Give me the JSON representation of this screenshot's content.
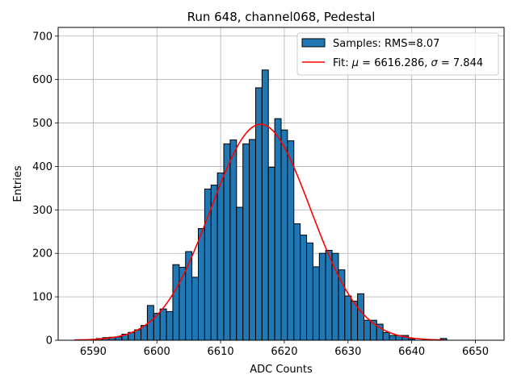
{
  "chart_data": {
    "type": "bar",
    "title": "Run 648, channel068, Pedestal",
    "xlabel": "ADC Counts",
    "ylabel": "Entries",
    "xlim": [
      6584.5,
      6654.5
    ],
    "ylim": [
      0,
      720
    ],
    "xticks": [
      6590,
      6600,
      6610,
      6620,
      6630,
      6640,
      6650
    ],
    "yticks": [
      0,
      100,
      200,
      300,
      400,
      500,
      600,
      700
    ],
    "grid": true,
    "legend_position": "top-right",
    "bar_color": "#1f77b4",
    "fit_color": "#ff0000",
    "series": [
      {
        "name": "Samples: RMS=8.07",
        "kind": "histogram",
        "x": [
          6588,
          6589,
          6590,
          6591,
          6592,
          6593,
          6594,
          6595,
          6596,
          6597,
          6598,
          6599,
          6600,
          6601,
          6602,
          6603,
          6604,
          6605,
          6606,
          6607,
          6608,
          6609,
          6610,
          6611,
          6612,
          6613,
          6614,
          6615,
          6616,
          6617,
          6618,
          6619,
          6620,
          6621,
          6622,
          6623,
          6624,
          6625,
          6626,
          6627,
          6628,
          6629,
          6630,
          6631,
          6632,
          6633,
          6634,
          6635,
          6636,
          6637,
          6638,
          6639,
          6640,
          6641,
          6642,
          6643,
          6644,
          6645
        ],
        "values": [
          1,
          1,
          2,
          4,
          6,
          7,
          8,
          14,
          18,
          24,
          34,
          80,
          62,
          72,
          66,
          174,
          168,
          204,
          145,
          257,
          348,
          357,
          385,
          452,
          461,
          306,
          452,
          462,
          581,
          622,
          398,
          510,
          484,
          459,
          268,
          242,
          224,
          169,
          200,
          207,
          200,
          162,
          102,
          90,
          107,
          46,
          46,
          37,
          18,
          11,
          11,
          11,
          3,
          0,
          0,
          1,
          0,
          4
        ]
      },
      {
        "name": "Fit: μ = 6616.286, σ = 7.844",
        "kind": "gaussian",
        "mu": 6616.286,
        "sigma": 7.844,
        "amplitude": 497,
        "x_range": [
          6587,
          6645
        ]
      }
    ],
    "legend": {
      "samples_label": "Samples: RMS=8.07",
      "fit_prefix": "Fit: ",
      "fit_mu_symbol": "μ",
      "fit_mu_value": " = 6616.286, ",
      "fit_sigma_symbol": "σ",
      "fit_sigma_value": " = 7.844"
    }
  }
}
